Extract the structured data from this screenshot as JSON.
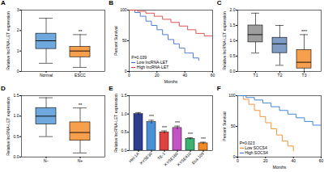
{
  "chart_data": [
    {
      "type": "box",
      "title": "A",
      "ylabel": "Relative lncRNA-LET expression",
      "categories": [
        "Normal",
        "ESCC"
      ],
      "min": [
        0.4,
        0.2
      ],
      "q1": [
        1.1,
        0.7
      ],
      "median": [
        1.5,
        1.0
      ],
      "q3": [
        1.85,
        1.2
      ],
      "max": [
        2.6,
        1.8
      ],
      "colors": [
        "#6fa8dc",
        "#f6a04d"
      ],
      "ylim": [
        0,
        3
      ],
      "yticks": [
        0,
        1,
        2,
        3
      ],
      "annotations": [
        {
          "x": "ESCC",
          "text": "**"
        }
      ]
    },
    {
      "type": "line",
      "title": "B",
      "xlabel": "Months",
      "ylabel": "Percent Survival",
      "line_style": "step",
      "legend": "lower left",
      "annotations": [
        {
          "text": "P=0.039"
        }
      ],
      "series": [
        {
          "name": "Low lncRNA-LET",
          "color": "#3b6fd1",
          "x": [
            0,
            4,
            8,
            12,
            16,
            20,
            24,
            28,
            32,
            36,
            40,
            46,
            50
          ],
          "values": [
            100,
            96,
            90,
            82,
            75,
            68,
            60,
            52,
            45,
            38,
            30,
            22,
            18
          ]
        },
        {
          "name": "High lncRNA-LET",
          "color": "#e04040",
          "x": [
            0,
            6,
            12,
            18,
            24,
            30,
            36,
            42,
            48,
            54,
            60
          ],
          "values": [
            100,
            98,
            95,
            90,
            85,
            80,
            74,
            68,
            62,
            58,
            55
          ]
        }
      ],
      "xlim": [
        0,
        60
      ],
      "xticks": [
        0,
        20,
        40,
        60
      ],
      "ylim": [
        0,
        100
      ],
      "yticks": [
        0,
        50,
        100
      ]
    },
    {
      "type": "box",
      "title": "C",
      "ylabel": "Relative lncRNA-LET expression",
      "categories": [
        "T1",
        "T2",
        "T3"
      ],
      "min": [
        0.6,
        0.2,
        0.0
      ],
      "q1": [
        0.95,
        0.6,
        0.1
      ],
      "median": [
        1.2,
        0.9,
        0.3
      ],
      "q3": [
        1.5,
        1.1,
        0.7
      ],
      "max": [
        1.9,
        1.5,
        1.2
      ],
      "colors": [
        "#9e9e9e",
        "#7e9cc4",
        "#f6a04d"
      ],
      "ylim": [
        0,
        2
      ],
      "yticks": [
        {
          "value": 0,
          "label": "0.0"
        },
        {
          "value": 0.5,
          "label": "0.5"
        },
        {
          "value": 1,
          "label": "1.0"
        },
        {
          "value": 1.5,
          "label": "1.5"
        },
        {
          "value": 2,
          "label": "2.0"
        }
      ],
      "annotations": [
        {
          "x": "T3",
          "text": "***"
        }
      ]
    },
    {
      "type": "box",
      "title": "D",
      "ylabel": "Relative lncRNA-LET expression",
      "categories": [
        "N−",
        "N+"
      ],
      "min": [
        0.5,
        0.1
      ],
      "q1": [
        0.8,
        0.4
      ],
      "median": [
        1.0,
        0.6
      ],
      "q3": [
        1.2,
        0.85
      ],
      "max": [
        1.45,
        1.2
      ],
      "colors": [
        "#6fa8dc",
        "#f6a04d"
      ],
      "ylim": [
        0,
        1.5
      ],
      "yticks": [
        {
          "value": 0,
          "label": "0.0"
        },
        {
          "value": 0.5,
          "label": "0.5"
        },
        {
          "value": 1,
          "label": "1.0"
        },
        {
          "value": 1.5,
          "label": "1.5"
        }
      ],
      "annotations": [
        {
          "x": "N+",
          "text": "**"
        }
      ]
    },
    {
      "type": "bar",
      "title": "E",
      "ylabel": "Relative lncRNA-LET expression",
      "categories": [
        "Het-1A",
        "KYSE30",
        "TE-1",
        "KYSE180",
        "KYSE410",
        "Eca-109"
      ],
      "values": [
        1.0,
        0.78,
        0.5,
        0.62,
        0.32,
        0.2
      ],
      "errors": [
        0.04,
        0.05,
        0.04,
        0.05,
        0.03,
        0.03
      ],
      "colors": [
        "#2d3e8f",
        "#4a90d9",
        "#e04040",
        "#c455c4",
        "#3cb371",
        "#f08a24"
      ],
      "ylim": [
        0,
        1.5
      ],
      "yticks": [
        {
          "value": 0,
          "label": "0.0"
        },
        {
          "value": 0.5,
          "label": "0.5"
        },
        {
          "value": 1,
          "label": "1.0"
        },
        {
          "value": 1.5,
          "label": "1.5"
        }
      ],
      "annotations": [
        {
          "x": "KYSE30",
          "text": "***"
        },
        {
          "x": "TE-1",
          "text": "***"
        },
        {
          "x": "KYSE180",
          "text": "***"
        },
        {
          "x": "KYSE410",
          "text": "***"
        },
        {
          "x": "Eca-109",
          "text": "***"
        }
      ]
    },
    {
      "type": "line",
      "title": "F",
      "xlabel": "Months",
      "ylabel": "Percent Survival",
      "line_style": "step",
      "legend": "lower left",
      "annotations": [
        {
          "text": "P=0.023"
        }
      ],
      "series": [
        {
          "name": "Low SOCS4",
          "color": "#f08a24",
          "x": [
            0,
            4,
            8,
            12,
            16,
            20,
            24,
            28,
            32,
            36,
            40
          ],
          "values": [
            100,
            94,
            86,
            76,
            66,
            56,
            46,
            36,
            26,
            18,
            10
          ]
        },
        {
          "name": "High SOCS4",
          "color": "#2b7bd6",
          "x": [
            0,
            6,
            12,
            18,
            24,
            30,
            36,
            42,
            48,
            54,
            60
          ],
          "values": [
            100,
            97,
            93,
            88,
            82,
            76,
            70,
            64,
            58,
            52,
            48
          ]
        }
      ],
      "xlim": [
        0,
        60
      ],
      "xticks": [
        0,
        20,
        40,
        60
      ],
      "ylim": [
        0,
        100
      ],
      "yticks": [
        0,
        50,
        100
      ]
    }
  ]
}
